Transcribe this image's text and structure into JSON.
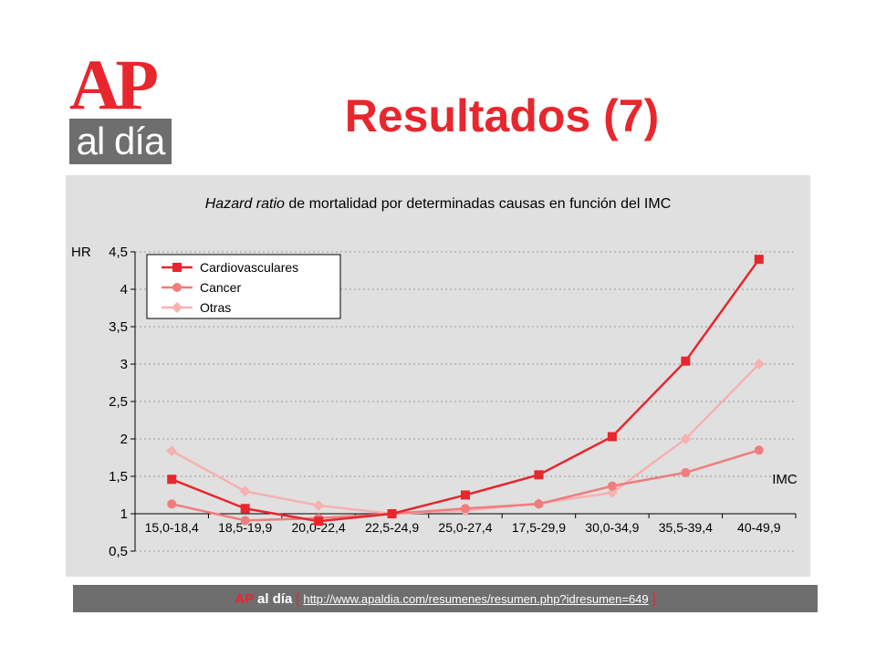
{
  "logo": {
    "ap": "AP",
    "aldia": "al día",
    "brand_color": "#e8262d",
    "box_color": "#6e6e6e"
  },
  "page_title": "Resultados (7)",
  "footer": {
    "brand_ap": "AP",
    "brand_aldia": "al día",
    "bracket_left": "[",
    "url": "http://www.apaldia.com/resumenes/resumen.php?idresumen=649",
    "bracket_right": "]"
  },
  "chart_data": {
    "type": "line",
    "title_italic": "Hazard ratio",
    "title_rest": " de mortalidad por determinadas causas en función del IMC",
    "ylabel": "HR",
    "xlabel": "IMC",
    "ylim": [
      0.5,
      4.5
    ],
    "yticks": [
      0.5,
      1,
      1.5,
      2,
      2.5,
      3,
      3.5,
      4,
      4.5
    ],
    "ytick_labels": [
      "0,5",
      "1",
      "1,5",
      "2",
      "2,5",
      "3",
      "3,5",
      "4",
      "4,5"
    ],
    "categories": [
      "15,0-18,4",
      "18,5-19,9",
      "20,0-22,4",
      "22,5-24,9",
      "25,0-27,4",
      "17,5-29,9",
      "30,0-34,9",
      "35,5-39,4",
      "40-49,9"
    ],
    "grid": true,
    "legend_position": "top-left",
    "series": [
      {
        "name": "Cardiovasculares",
        "marker": "square",
        "color": "#e8262d",
        "values": [
          1.46,
          1.07,
          0.9,
          1.0,
          1.25,
          1.52,
          2.03,
          3.04,
          4.4
        ]
      },
      {
        "name": "Cancer",
        "marker": "circle",
        "color": "#f07d7d",
        "values": [
          1.13,
          0.91,
          0.94,
          1.0,
          1.07,
          1.13,
          1.37,
          1.55,
          1.85
        ]
      },
      {
        "name": "Otras",
        "marker": "diamond",
        "color": "#f6b1b1",
        "values": [
          1.84,
          1.3,
          1.11,
          1.0,
          1.04,
          1.14,
          1.28,
          2.0,
          3.0
        ]
      }
    ]
  }
}
